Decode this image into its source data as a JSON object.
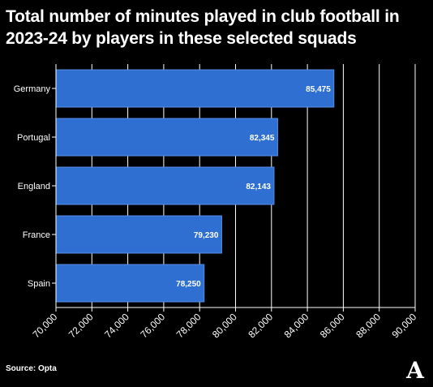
{
  "header": {
    "title": "Total number of minutes played in club football in 2023-24 by players in these selected squads"
  },
  "footer": {
    "source": "Source: Opta",
    "logo_text": "A"
  },
  "colors": {
    "background": "#000000",
    "bar": "#2f6fd1",
    "bar_border": "#5590e6",
    "text": "#ffffff",
    "grid": "#ffffff"
  },
  "chart_data": {
    "type": "bar",
    "orientation": "horizontal",
    "title": "Total number of minutes played in club football in 2023-24 by players in these selected squads",
    "xlabel": "",
    "ylabel": "",
    "categories": [
      "Germany",
      "Portugal",
      "England",
      "France",
      "Spain"
    ],
    "values": [
      85475,
      82345,
      82143,
      79230,
      78250
    ],
    "value_labels": [
      "85,475",
      "82,345",
      "82,143",
      "79,230",
      "78,250"
    ],
    "xlim": [
      70000,
      90000
    ],
    "x_ticks": [
      70000,
      72000,
      74000,
      76000,
      78000,
      80000,
      82000,
      84000,
      86000,
      88000,
      90000
    ],
    "x_tick_labels": [
      "70,000",
      "72,000",
      "74,000",
      "76,000",
      "78,000",
      "80,000",
      "82,000",
      "84,000",
      "86,000",
      "88,000",
      "90,000"
    ],
    "grid": true,
    "legend": "none"
  }
}
